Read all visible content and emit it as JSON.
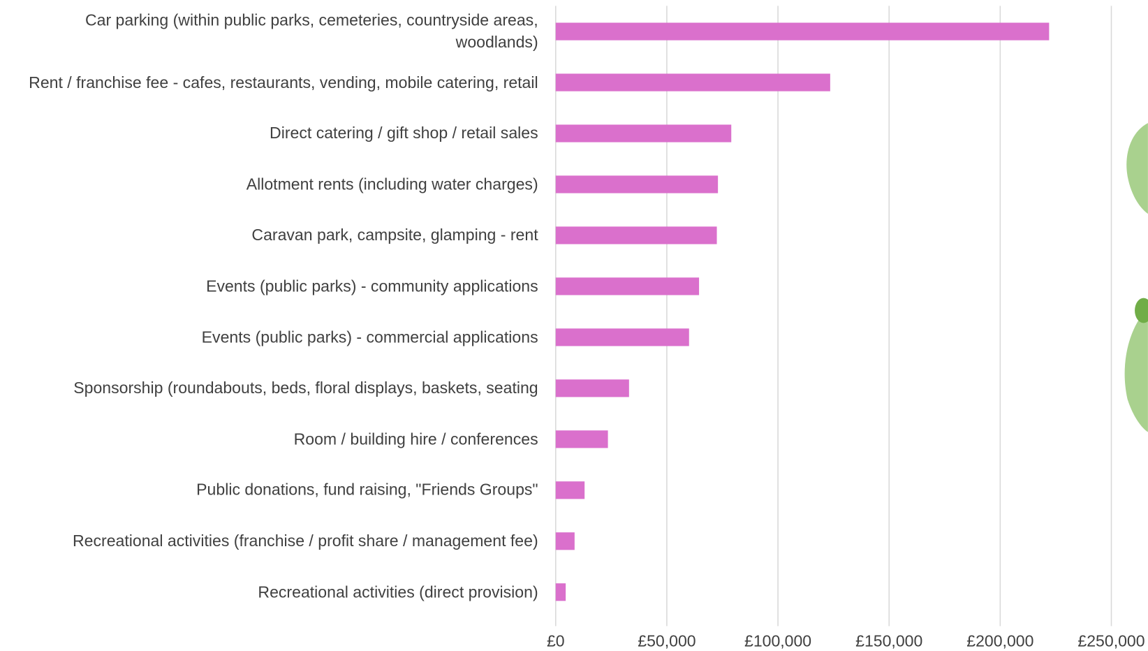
{
  "chart_data": {
    "type": "bar",
    "orientation": "horizontal",
    "categories": [
      "Car parking (within public parks, cemeteries, countryside areas, woodlands)",
      "Rent / franchise fee - cafes, restaurants, vending, mobile catering, retail",
      "Direct catering / gift shop / retail sales",
      "Allotment rents (including water charges)",
      "Caravan park, campsite, glamping - rent",
      "Events (public parks) - community applications",
      "Events (public parks) - commercial applications",
      "Sponsorship (roundabouts, beds, floral displays, baskets, seating",
      "Room / building hire / conferences",
      "Public donations, fund raising, \"Friends Groups\"",
      "Recreational activities (franchise / profit share / management fee)",
      "Recreational activities (direct provision)"
    ],
    "values": [
      222000,
      123500,
      79000,
      73000,
      72500,
      64500,
      60000,
      33000,
      23500,
      13000,
      8500,
      4500
    ],
    "color": "#da70cc",
    "xlim": [
      0,
      250000
    ],
    "xticks": [
      {
        "value": 0,
        "label": "£0"
      },
      {
        "value": 50000,
        "label": "£50,000"
      },
      {
        "value": 100000,
        "label": "£100,000"
      },
      {
        "value": 150000,
        "label": "£150,000"
      },
      {
        "value": 200000,
        "label": "£200,000"
      },
      {
        "value": 250000,
        "label": "£250,000"
      }
    ],
    "grid": true
  }
}
